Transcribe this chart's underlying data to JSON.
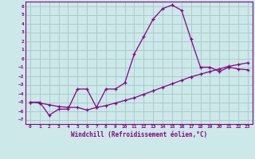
{
  "xlabel": "Windchill (Refroidissement éolien,°C)",
  "background_color": "#cce8e8",
  "grid_color": "#aacccc",
  "line_color": "#880088",
  "xlim": [
    -0.5,
    23.5
  ],
  "ylim": [
    -7.5,
    6.5
  ],
  "xticks": [
    0,
    1,
    2,
    3,
    4,
    5,
    6,
    7,
    8,
    9,
    10,
    11,
    12,
    13,
    14,
    15,
    16,
    17,
    18,
    19,
    20,
    21,
    22,
    23
  ],
  "yticks": [
    -7,
    -6,
    -5,
    -4,
    -3,
    -2,
    -1,
    0,
    1,
    2,
    3,
    4,
    5,
    6
  ],
  "line1_x": [
    0,
    1,
    2,
    3,
    4,
    5,
    6,
    7,
    8,
    9,
    10,
    11,
    12,
    13,
    14,
    15,
    16,
    17,
    18,
    19,
    20,
    21,
    22,
    23
  ],
  "line1_y": [
    -5.0,
    -5.0,
    -6.5,
    -5.8,
    -5.8,
    -3.5,
    -3.5,
    -5.6,
    -3.5,
    -3.5,
    -2.8,
    0.5,
    2.5,
    4.5,
    5.7,
    6.1,
    5.5,
    2.2,
    -1.0,
    -1.0,
    -1.5,
    -1.0,
    -1.2,
    -1.3
  ],
  "line2_x": [
    0,
    1,
    2,
    3,
    4,
    5,
    6,
    7,
    8,
    9,
    10,
    11,
    12,
    13,
    14,
    15,
    16,
    17,
    18,
    19,
    20,
    21,
    22,
    23
  ],
  "line2_y": [
    -5.0,
    -5.1,
    -5.3,
    -5.5,
    -5.6,
    -5.6,
    -5.9,
    -5.6,
    -5.4,
    -5.1,
    -4.8,
    -4.5,
    -4.1,
    -3.7,
    -3.3,
    -2.9,
    -2.5,
    -2.1,
    -1.8,
    -1.5,
    -1.2,
    -0.9,
    -0.7,
    -0.5
  ]
}
